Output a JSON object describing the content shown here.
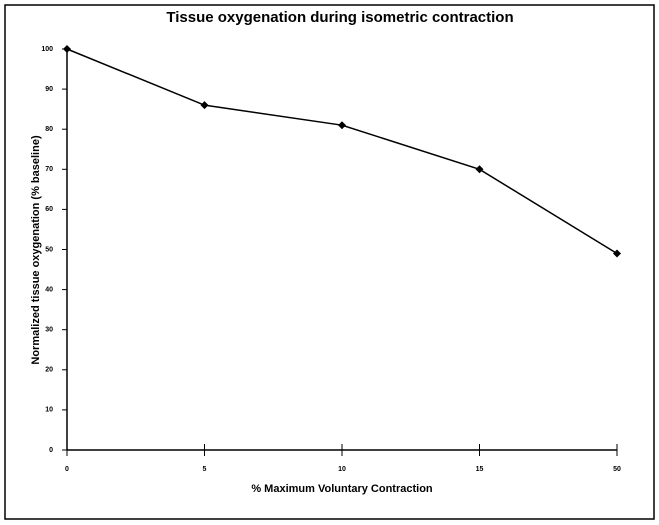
{
  "chart_data": {
    "type": "line",
    "title": "Tissue oxygenation during isometric contraction",
    "x_label": "% Maximum Voluntary Contraction",
    "y_label": "Normalized tissue oxygenation (% baseline)",
    "categories": [
      "0",
      "5",
      "10",
      "15",
      "50"
    ],
    "series": [
      {
        "color": "#000000",
        "values": [
          100,
          86,
          81,
          70,
          49
        ]
      }
    ],
    "ylim": [
      0,
      100
    ],
    "yticks": [
      0,
      10,
      20,
      30,
      40,
      50,
      60,
      70,
      80,
      90,
      100
    ],
    "grid": false
  }
}
